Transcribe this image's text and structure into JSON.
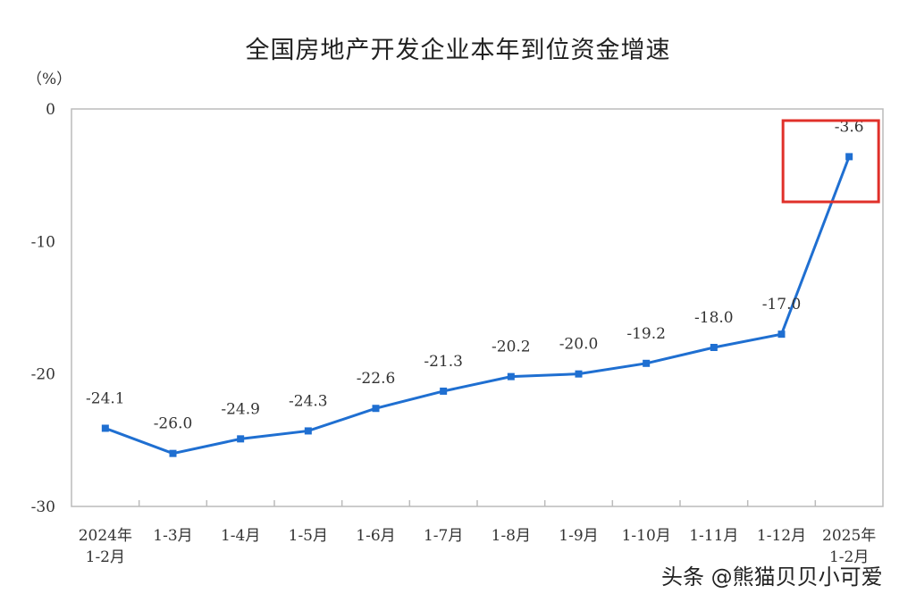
{
  "chart_data": {
    "type": "line",
    "title": "全国房地产开发企业本年到位资金增速",
    "ylabel": "（%）",
    "categories": [
      [
        "2024年",
        "1-2月"
      ],
      [
        "1-3月"
      ],
      [
        "1-4月"
      ],
      [
        "1-5月"
      ],
      [
        "1-6月"
      ],
      [
        "1-7月"
      ],
      [
        "1-8月"
      ],
      [
        "1-9月"
      ],
      [
        "1-10月"
      ],
      [
        "1-11月"
      ],
      [
        "1-12月"
      ],
      [
        "2025年",
        "1-2月"
      ]
    ],
    "values": [
      -24.1,
      -26.0,
      -24.9,
      -24.3,
      -22.6,
      -21.3,
      -20.2,
      -20.0,
      -19.2,
      -18.0,
      -17.0,
      -3.6
    ],
    "labels": [
      "-24.1",
      "-26.0",
      "-24.9",
      "-24.3",
      "-22.6",
      "-21.3",
      "-20.2",
      "-20.0",
      "-19.2",
      "-18.0",
      "-17.0",
      "-3.6"
    ],
    "yticks": [
      "0",
      "-10",
      "-20",
      "-30"
    ],
    "ylim": [
      -30,
      0
    ],
    "grid": false,
    "line_color": "#1f6fd1",
    "highlight_color": "#e0302a",
    "highlight_index": 11
  },
  "watermark": "头条 @熊猫贝贝小可爱"
}
